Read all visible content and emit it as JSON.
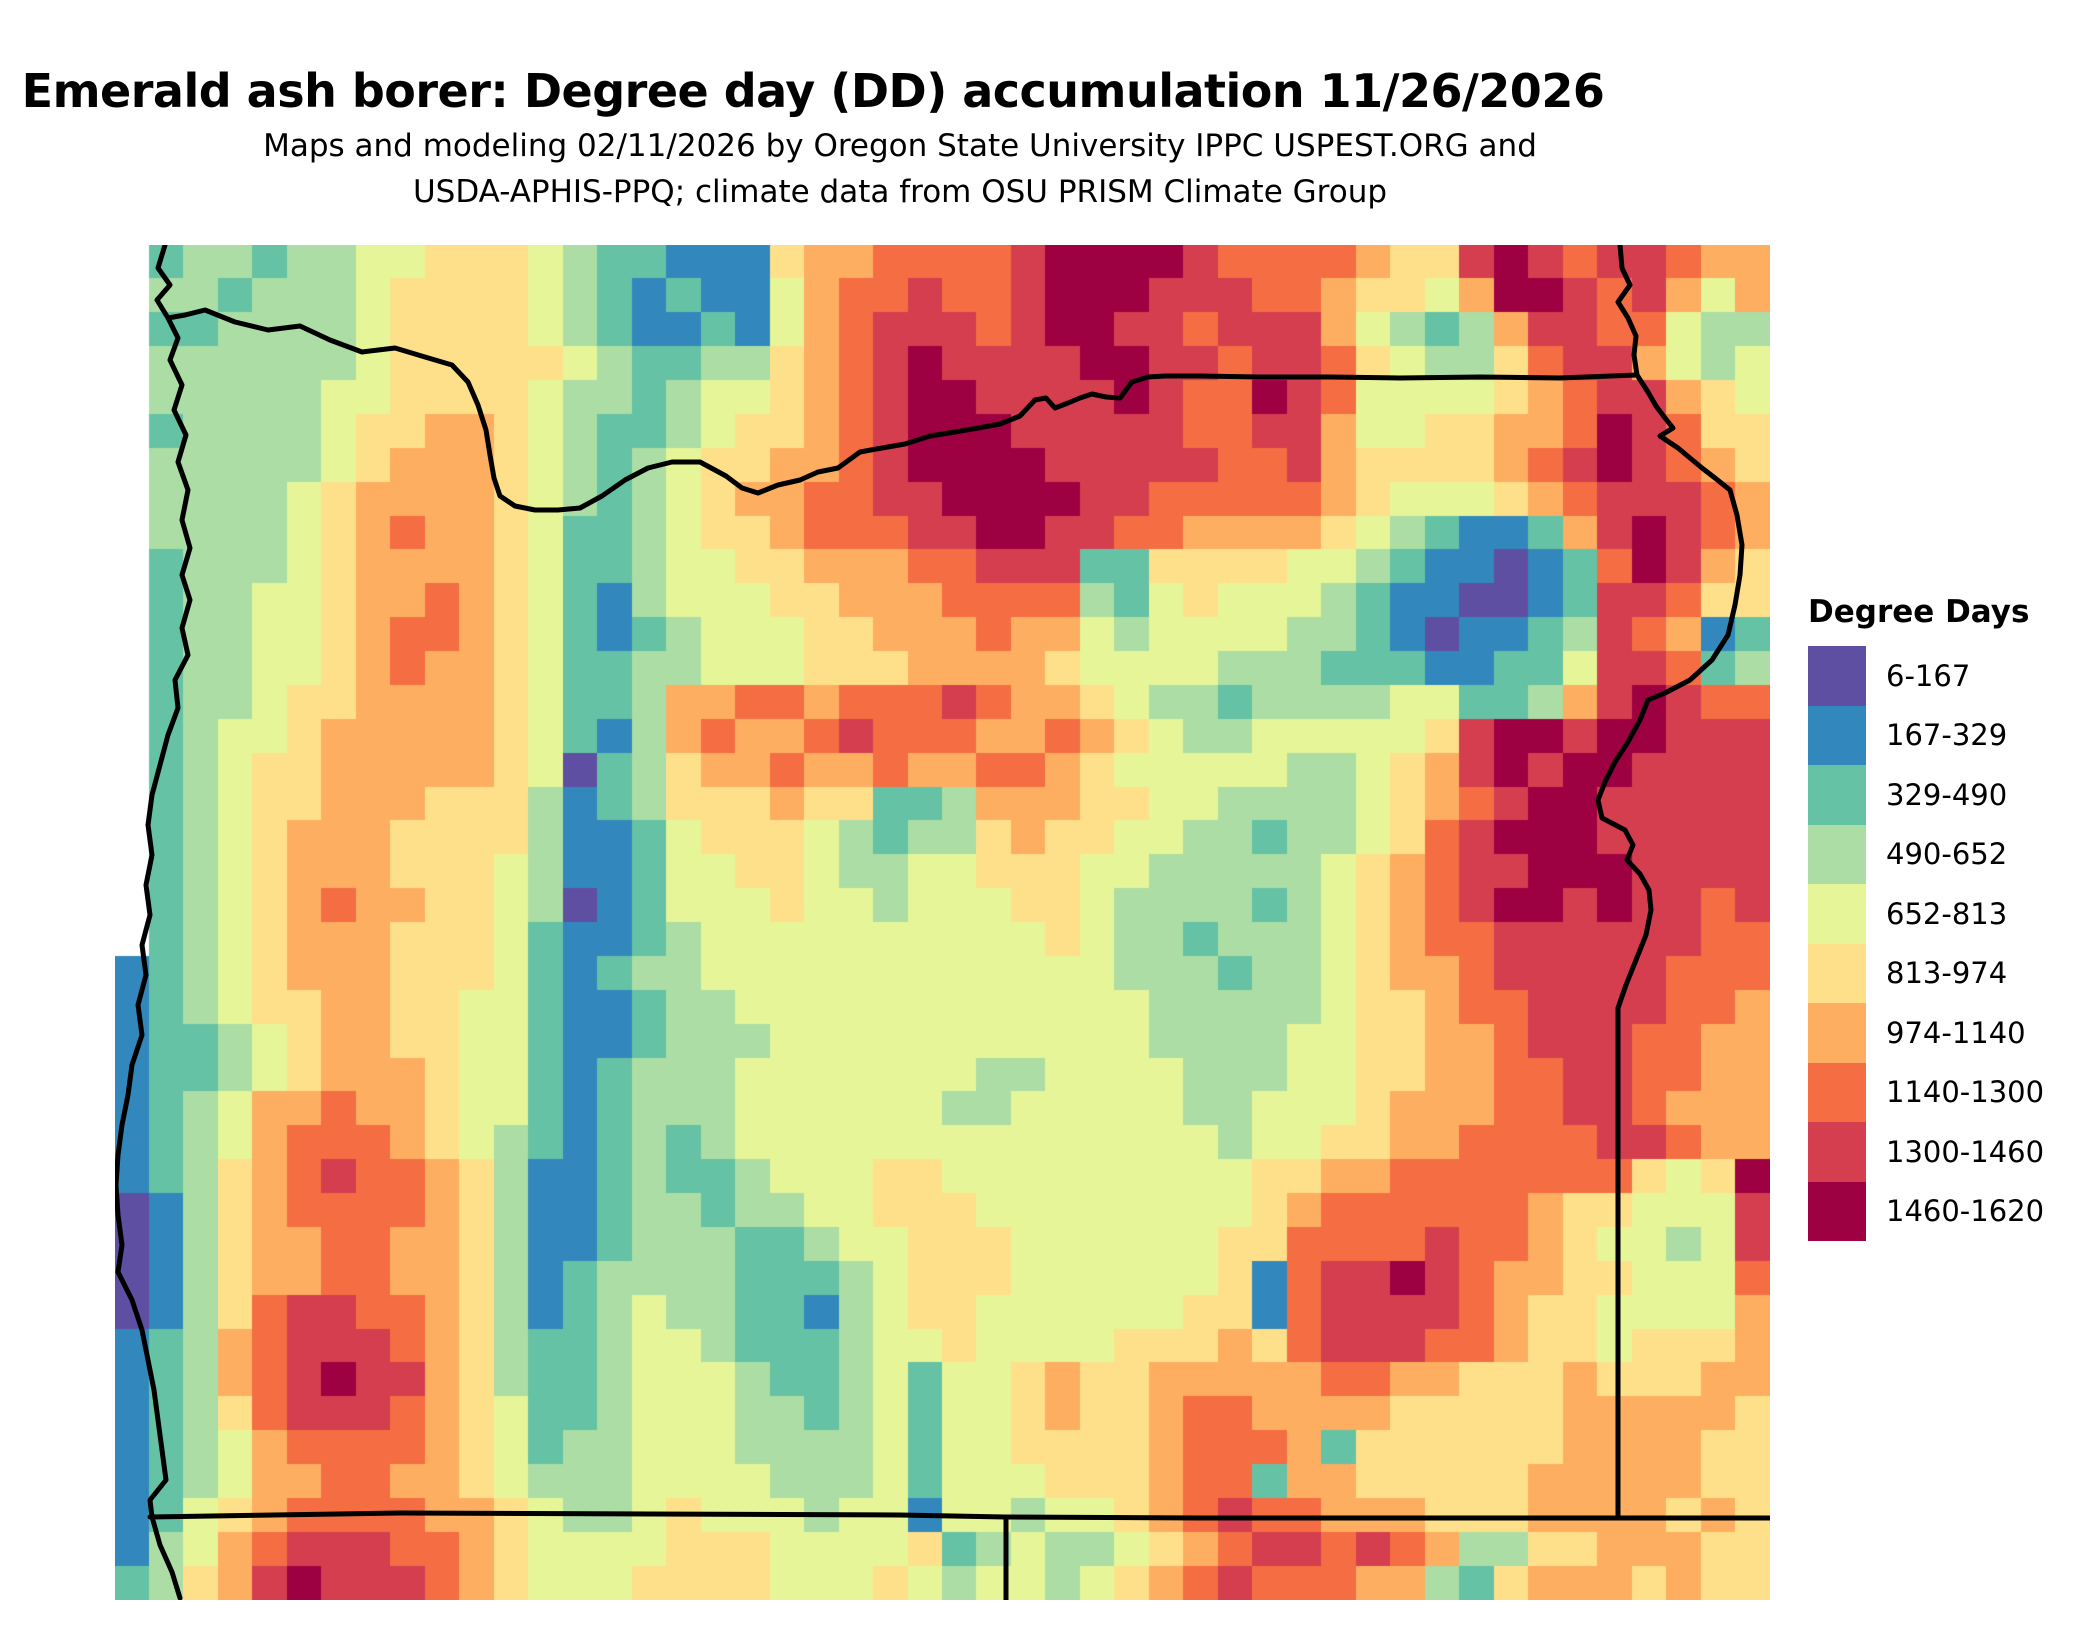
{
  "page": {
    "title": "Emerald ash borer: Degree day (DD) accumulation 11/26/2026",
    "subtitle_line1": "Maps and modeling 02/11/2026 by Oregon State University IPPC USPEST.ORG and",
    "subtitle_line2": "USDA-APHIS-PPQ; climate data from OSU PRISM Climate Group"
  },
  "chart_data": {
    "type": "heatmap",
    "title": "Emerald ash borer: Degree day (DD) accumulation 11/26/2026",
    "subtitle": "Maps and modeling 02/11/2026 by Oregon State University IPPC USPEST.ORG and USDA-APHIS-PPQ; climate data from OSU PRISM Climate Group",
    "region": "Oregon, USA with adjacent parts of Washington, Idaho, California and Nevada",
    "units": "accumulated degree days",
    "value_range": [
      6,
      1620
    ],
    "legend_title": "Degree Days",
    "legend_position": "right",
    "classes": [
      {
        "label": "6-167",
        "color": "#5e4fa2"
      },
      {
        "label": "167-329",
        "color": "#3288bd"
      },
      {
        "label": "329-490",
        "color": "#66c2a5"
      },
      {
        "label": "490-652",
        "color": "#abdda4"
      },
      {
        "label": "652-813",
        "color": "#e6f598"
      },
      {
        "label": "813-974",
        "color": "#fee08b"
      },
      {
        "label": "974-1140",
        "color": "#fdae61"
      },
      {
        "label": "1140-1300",
        "color": "#f46d43"
      },
      {
        "label": "1300-1460",
        "color": "#d53e4f"
      },
      {
        "label": "1460-1620",
        "color": "#9e0142"
      }
    ],
    "grid": {
      "cols": 48,
      "rows": 40,
      "no_data_char": ".",
      "palette": {
        "0": "#5e4fa2",
        "1": "#3288bd",
        "2": "#66c2a5",
        "3": "#abdda4",
        "4": "#e6f598",
        "5": "#fee08b",
        "6": "#fdae61",
        "7": "#f46d43",
        "8": "#d53e4f",
        "9": "#9e0142"
      },
      "cells": [
        ".23323344555432211156677778999987777655898788766",
        ".33233345555432121146778778999888776554699878646",
        ".2233334555543211214678887899887888643236 8877433",
        ".33333345555543223356789888899887887543357886434",
        ".3333344555543323445678998888987798744445678 8654",
        ".23333455665432234556789998888877886445566798755",
        ".3333345666543234556678999988888778655556789 8765",
        ".33334566665432345667788999988777776544456788876",
        ".33334567665422345567778899887766665432112689876",
        ".23334566665422344556667788822555544321101279865",
        ".23344566765421344455666777732454443211001288755",
        ".23344567765421234445566676643444433210112387612",
        ".23344567665422334445556666544443332221122488723",
        ".23345566665422366776777876654332333344223689877",
        ".2344566666542136766787776676543344444589 9899888",
        ".23455666665402356676676677654444433456898998888",
        ".23455666555312355565522366655443333456789988888",
        ".23456665555311245554323356554433233457899988888",
        ".23456665554311244554334455544333334567889998888",
        ".23456766554301244454434445543333234567899898878",
        ".23456665554211234444444444543323334567788888877",
        "123456665554212334444444444443332334566788888777",
        "123455665544211233444444444444333334556778888776",
        "122345665544211233344444444444333344556678887766",
        "122345666544212333444444433444433344556677887766",
        "123466766544212333444444334444433444566677887666",
        "123467776543212323444444444444443445566777788766",
        "123567877653112322344455444444444556677777775459",
        "013567777653112332334455544444444567777776554448",
        "013566776653112333223445554444445577778776544348",
        "013566776653123333222345554444445178898766554447",
        "013578877653123433221345544444455178888765544446",
        "123678887653223443222344544445556578887765545556",
        "123678988653223444322342445655666667766555655566",
        "123578887654223444332342445655677666655555666665",
        "123467777654233444333342445555677762555555666655",
        "123466776654333444433342444555677266555556666655",
        "124567777665433454443441443445678776665556666565",
        "134678887765444455544445234334567887876335566655",
        "235689888765444555544454344345678777663256665655"
      ]
    },
    "boundaries": {
      "stroke_color": "#000000",
      "stroke_width": 5,
      "coastline": [
        [
          50,
          0
        ],
        [
          43,
          23
        ],
        [
          55,
          40
        ],
        [
          42,
          55
        ],
        [
          53,
          73
        ],
        [
          63,
          93
        ],
        [
          55,
          115
        ],
        [
          67,
          140
        ],
        [
          59,
          165
        ],
        [
          71,
          190
        ],
        [
          63,
          217
        ],
        [
          73,
          245
        ],
        [
          67,
          275
        ],
        [
          75,
          303
        ],
        [
          67,
          330
        ],
        [
          75,
          355
        ],
        [
          67,
          383
        ],
        [
          73,
          410
        ],
        [
          60,
          435
        ],
        [
          63,
          463
        ],
        [
          53,
          490
        ],
        [
          45,
          520
        ],
        [
          37,
          550
        ],
        [
          33,
          580
        ],
        [
          37,
          610
        ],
        [
          31,
          640
        ],
        [
          35,
          670
        ],
        [
          27,
          700
        ],
        [
          31,
          730
        ],
        [
          23,
          760
        ],
        [
          27,
          790
        ],
        [
          17,
          820
        ],
        [
          13,
          850
        ],
        [
          7,
          880
        ],
        [
          3,
          910
        ],
        [
          1,
          940
        ],
        [
          3,
          970
        ],
        [
          7,
          1000
        ],
        [
          3,
          1027
        ],
        [
          17,
          1055
        ],
        [
          27,
          1085
        ],
        [
          33,
          1115
        ],
        [
          39,
          1145
        ],
        [
          43,
          1175
        ],
        [
          47,
          1205
        ],
        [
          51,
          1235
        ],
        [
          35,
          1255
        ],
        [
          37,
          1272
        ],
        [
          45,
          1300
        ],
        [
          57,
          1327
        ],
        [
          65,
          1353
        ]
      ],
      "columbia_river_or_wa_border": [
        [
          53,
          73
        ],
        [
          70,
          70
        ],
        [
          90,
          65
        ],
        [
          120,
          77
        ],
        [
          153,
          85
        ],
        [
          185,
          81
        ],
        [
          215,
          95
        ],
        [
          247,
          107
        ],
        [
          280,
          103
        ],
        [
          310,
          112
        ],
        [
          337,
          120
        ],
        [
          353,
          137
        ],
        [
          363,
          160
        ],
        [
          371,
          185
        ],
        [
          375,
          210
        ],
        [
          379,
          233
        ],
        [
          385,
          251
        ],
        [
          400,
          261
        ],
        [
          420,
          265
        ],
        [
          443,
          265
        ],
        [
          465,
          263
        ],
        [
          487,
          251
        ],
        [
          510,
          235
        ],
        [
          533,
          223
        ],
        [
          557,
          217
        ],
        [
          585,
          217
        ],
        [
          611,
          231
        ],
        [
          627,
          243
        ],
        [
          643,
          248
        ],
        [
          663,
          240
        ],
        [
          685,
          235
        ],
        [
          703,
          227
        ],
        [
          723,
          223
        ],
        [
          745,
          207
        ],
        [
          767,
          203
        ],
        [
          790,
          199
        ],
        [
          815,
          191
        ],
        [
          840,
          187
        ],
        [
          863,
          183
        ],
        [
          885,
          179
        ],
        [
          905,
          171
        ],
        [
          920,
          155
        ],
        [
          931,
          153
        ],
        [
          940,
          163
        ],
        [
          953,
          158
        ],
        [
          965,
          153
        ],
        [
          977,
          149
        ],
        [
          991,
          152
        ],
        [
          1005,
          153
        ],
        [
          1017,
          137
        ],
        [
          1033,
          132
        ],
        [
          1050,
          131
        ],
        [
          1085,
          131
        ],
        [
          1145,
          132
        ],
        [
          1215,
          132
        ],
        [
          1285,
          133
        ],
        [
          1365,
          132
        ],
        [
          1445,
          133
        ],
        [
          1522,
          130
        ]
      ],
      "wa_id_border": [
        [
          1505,
          0
        ],
        [
          1507,
          23
        ],
        [
          1515,
          40
        ],
        [
          1503,
          57
        ],
        [
          1513,
          73
        ],
        [
          1521,
          91
        ],
        [
          1519,
          110
        ],
        [
          1522,
          130
        ]
      ],
      "snake_river_or_id_border": [
        [
          1522,
          130
        ],
        [
          1533,
          147
        ],
        [
          1541,
          161
        ],
        [
          1550,
          173
        ],
        [
          1558,
          183
        ],
        [
          1545,
          191
        ],
        [
          1563,
          203
        ],
        [
          1575,
          213
        ],
        [
          1587,
          223
        ],
        [
          1600,
          233
        ],
        [
          1615,
          245
        ],
        [
          1622,
          270
        ],
        [
          1627,
          300
        ],
        [
          1625,
          330
        ],
        [
          1620,
          360
        ],
        [
          1613,
          390
        ],
        [
          1597,
          415
        ],
        [
          1575,
          435
        ],
        [
          1550,
          448
        ],
        [
          1533,
          455
        ],
        [
          1525,
          475
        ],
        [
          1513,
          497
        ],
        [
          1500,
          517
        ],
        [
          1490,
          537
        ],
        [
          1483,
          555
        ],
        [
          1487,
          573
        ],
        [
          1510,
          585
        ],
        [
          1518,
          600
        ],
        [
          1512,
          615
        ],
        [
          1525,
          629
        ],
        [
          1534,
          645
        ],
        [
          1536,
          665
        ],
        [
          1531,
          690
        ],
        [
          1521,
          715
        ],
        [
          1511,
          740
        ],
        [
          1503,
          763
        ],
        [
          1503,
          1272
        ]
      ],
      "or_ca_nv_border": [
        [
          35,
          1272
        ],
        [
          285,
          1268
        ],
        [
          535,
          1269
        ],
        [
          785,
          1270
        ],
        [
          891,
          1272
        ],
        [
          1085,
          1273
        ],
        [
          1503,
          1273
        ],
        [
          1655,
          1273
        ]
      ],
      "ca_nv_border": [
        [
          891,
          1272
        ],
        [
          891,
          1355
        ]
      ]
    }
  }
}
